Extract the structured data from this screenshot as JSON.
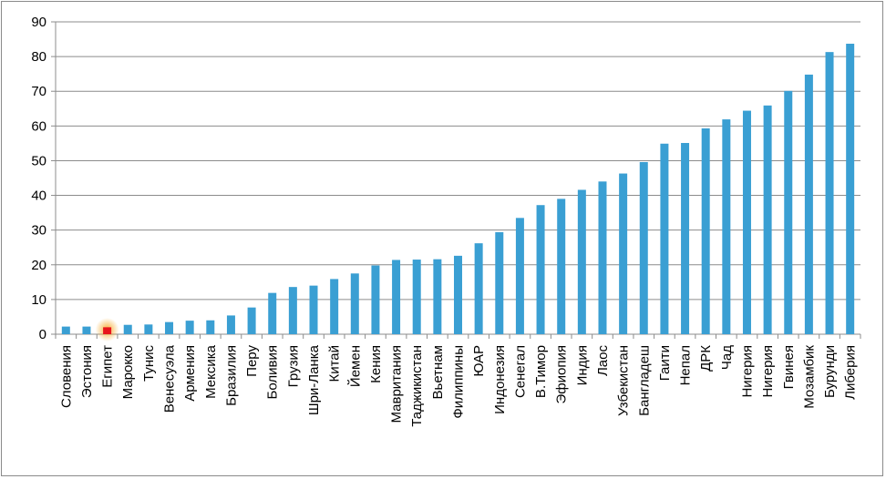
{
  "chart_data": {
    "type": "bar",
    "title": "",
    "xlabel": "",
    "ylabel": "",
    "ylim": [
      0,
      90
    ],
    "yticks": [
      0,
      10,
      20,
      30,
      40,
      50,
      60,
      70,
      80,
      90
    ],
    "grid": true,
    "legend": "none",
    "bar_color": "#3A9FD3",
    "highlight_color": "#E8141B",
    "highlight_glow": "#F6A623",
    "highlight_category": "Египет",
    "categories": [
      "Словения",
      "Эстония",
      "Египет",
      "Марокко",
      "Тунис",
      "Венесуэла",
      "Армения",
      "Мексика",
      "Бразилия",
      "Перу",
      "Боливия",
      "Грузия",
      "Шри-Ланка",
      "Китай",
      "Йемен",
      "Кения",
      "Мавритания",
      "Таджикистан",
      "Вьетнам",
      "Филиппины",
      "ЮАР",
      "Индонезия",
      "Сенегал",
      "В.Тимор",
      "Эфиопия",
      "Индия",
      "Лаос",
      "Узбекистан",
      "Бангладеш",
      "Гаити",
      "Непал",
      "ДРК",
      "Чад",
      "Нигерия",
      "Нигерия",
      "Гвинея",
      "Мозамбик",
      "Бурунди",
      "Либерия"
    ],
    "values": [
      2.2,
      2.2,
      2.0,
      2.7,
      2.8,
      3.5,
      3.9,
      4.0,
      5.4,
      7.7,
      11.9,
      13.6,
      14.0,
      15.9,
      17.5,
      19.8,
      21.4,
      21.5,
      21.6,
      22.6,
      26.2,
      29.4,
      33.5,
      37.2,
      39.0,
      41.6,
      44.0,
      46.3,
      49.6,
      54.9,
      55.1,
      59.3,
      61.9,
      64.4,
      65.9,
      70.1,
      74.8,
      81.3,
      83.7
    ]
  }
}
